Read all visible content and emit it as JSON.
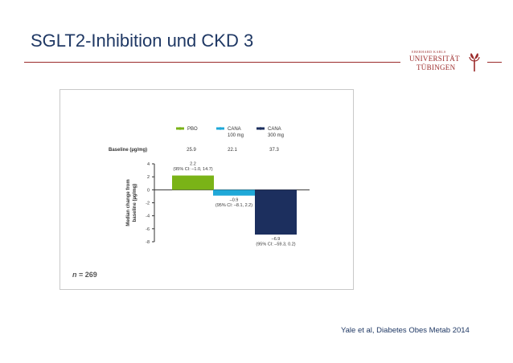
{
  "slide": {
    "title": "SGLT2-Inhibition und CKD 3",
    "citation": "Yale et al, Diabetes Obes Metab 2014",
    "accent_color": "#9b2a2a"
  },
  "logo": {
    "small_text": "EBERHARD KARLS",
    "line1": "UNIVERSITÄT",
    "line2": "TÜBINGEN",
    "color": "#9b2a2a"
  },
  "figure": {
    "n_prefix": "n",
    "n_value": "= 269",
    "baseline_label": "Baseline (µg/mg)"
  },
  "chart_data": {
    "type": "bar",
    "ylabel": "Median change from baseline (µg/mg)",
    "ylim": [
      -8,
      4
    ],
    "yticks": [
      4,
      2,
      0,
      -2,
      -4,
      -6,
      -8
    ],
    "grid": false,
    "legend_position": "top",
    "series": [
      {
        "name": "PBO",
        "name_line2": "",
        "value": 2.2,
        "baseline": "25.9",
        "color": "#7ab317",
        "annot_line1": "2.2",
        "annot_line2": "(95% CI: –1.0, 14.7)"
      },
      {
        "name": "CANA",
        "name_line2": "100 mg",
        "value": -0.9,
        "baseline": "22.1",
        "color": "#1fa8d8",
        "annot_line1": "–0.9",
        "annot_line2": "(95% CI: –8.1, 2.2)"
      },
      {
        "name": "CANA",
        "name_line2": "300 mg",
        "value": -6.9,
        "baseline": "37.3",
        "color": "#1c2f5e",
        "annot_line1": "–6.9",
        "annot_line2": "(95% CI: –59.3, 0.2)"
      }
    ]
  }
}
